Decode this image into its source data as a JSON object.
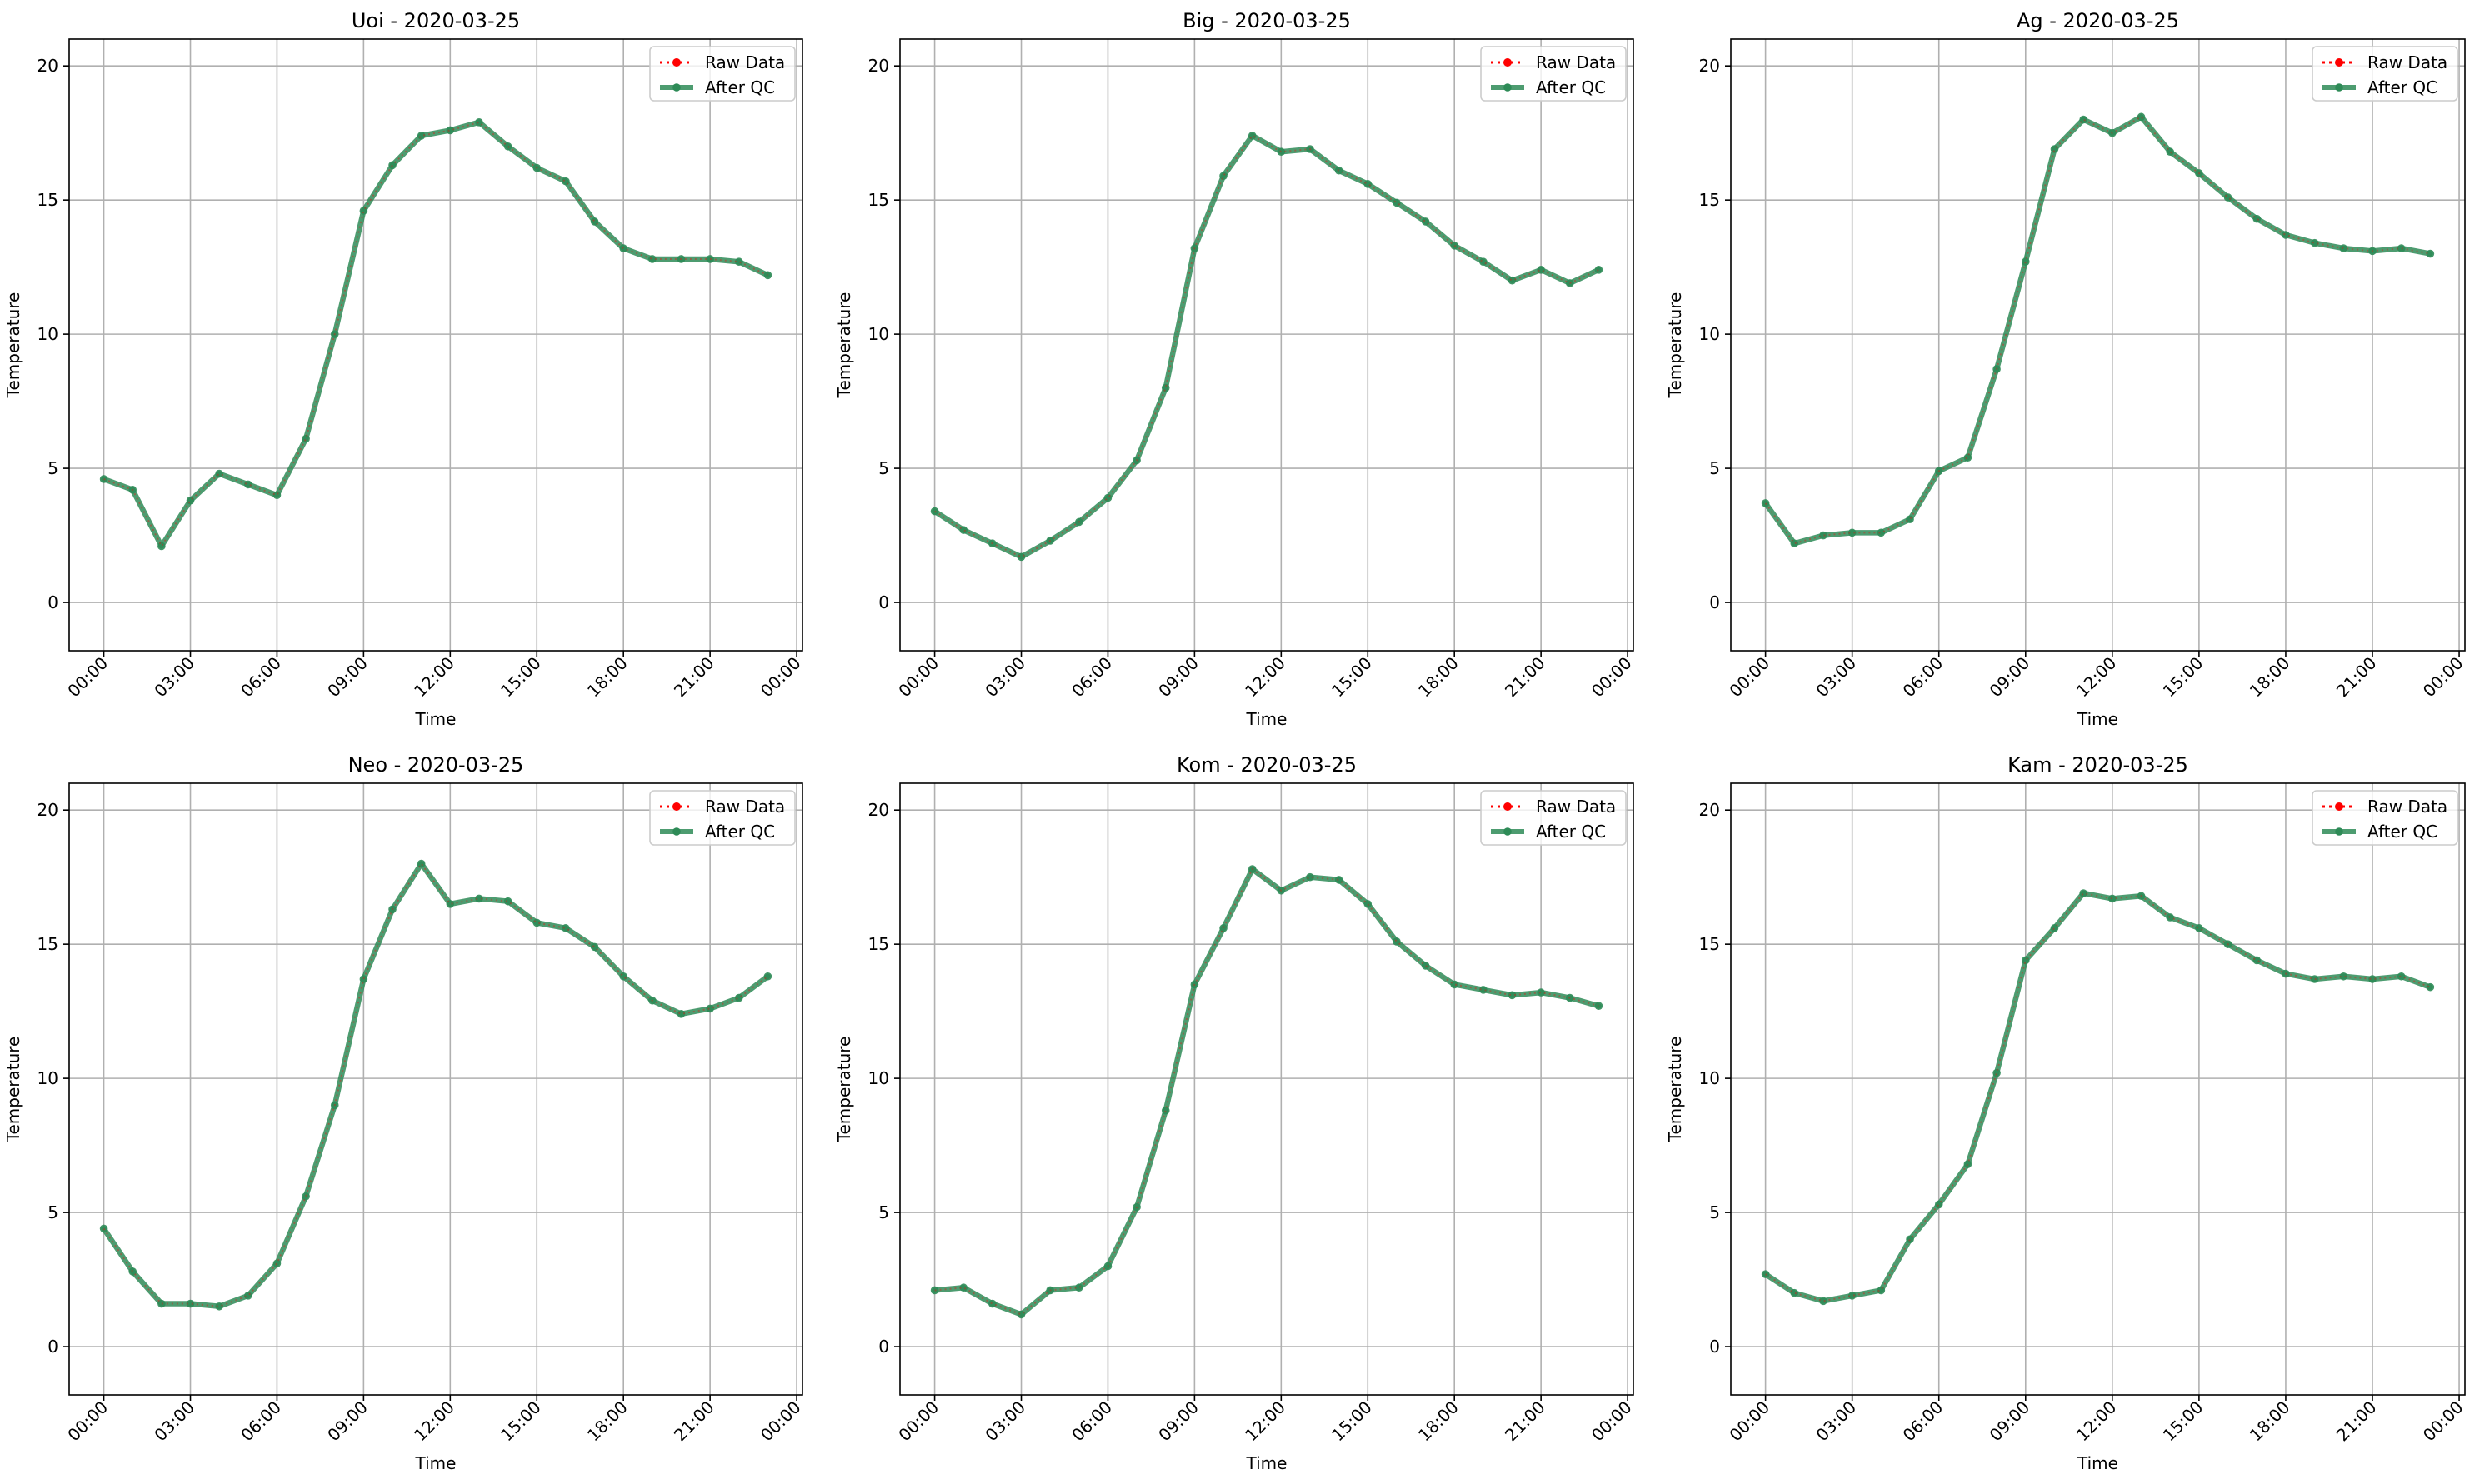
{
  "colors": {
    "raw": "#ff0000",
    "qc": "#2e8b57",
    "grid": "#b0b0b0",
    "axis": "#000000"
  },
  "legend": {
    "placement": "top-right",
    "raw_label": "Raw Data",
    "qc_label": "After QC"
  },
  "chart_data": [
    {
      "type": "line",
      "title": "Uoi - 2020-03-25",
      "xlabel": "Time",
      "ylabel": "Temperature",
      "x_hours": [
        0,
        1,
        2,
        3,
        4,
        5,
        6,
        7,
        8,
        9,
        10,
        11,
        12,
        13,
        14,
        15,
        16,
        17,
        18,
        19,
        20,
        21,
        22,
        23
      ],
      "xticks": [
        "00:00",
        "03:00",
        "06:00",
        "09:00",
        "12:00",
        "15:00",
        "18:00",
        "21:00",
        "00:00"
      ],
      "yticks": [
        "0",
        "5",
        "10",
        "15",
        "20"
      ],
      "ylim": [
        -1.8,
        21.0
      ],
      "grid": true,
      "series": [
        {
          "name": "Raw Data",
          "values": [
            4.6,
            4.2,
            2.1,
            3.8,
            4.8,
            4.4,
            4.0,
            6.1,
            10.0,
            14.6,
            16.3,
            17.4,
            17.6,
            17.9,
            17.0,
            16.2,
            15.7,
            14.2,
            13.2,
            12.8,
            12.8,
            12.8,
            12.7,
            12.2
          ]
        },
        {
          "name": "After QC",
          "values": [
            4.6,
            4.2,
            2.1,
            3.8,
            4.8,
            4.4,
            4.0,
            6.1,
            10.0,
            14.6,
            16.3,
            17.4,
            17.6,
            17.9,
            17.0,
            16.2,
            15.7,
            14.2,
            13.2,
            12.8,
            12.8,
            12.8,
            12.7,
            12.2
          ]
        }
      ]
    },
    {
      "type": "line",
      "title": "Big - 2020-03-25",
      "xlabel": "Time",
      "ylabel": "Temperature",
      "x_hours": [
        0,
        1,
        2,
        3,
        4,
        5,
        6,
        7,
        8,
        9,
        10,
        11,
        12,
        13,
        14,
        15,
        16,
        17,
        18,
        19,
        20,
        21,
        22,
        23
      ],
      "xticks": [
        "00:00",
        "03:00",
        "06:00",
        "09:00",
        "12:00",
        "15:00",
        "18:00",
        "21:00",
        "00:00"
      ],
      "yticks": [
        "0",
        "5",
        "10",
        "15",
        "20"
      ],
      "ylim": [
        -1.8,
        21.0
      ],
      "grid": true,
      "series": [
        {
          "name": "Raw Data",
          "values": [
            3.4,
            2.7,
            2.2,
            1.7,
            2.3,
            3.0,
            3.9,
            5.3,
            8.0,
            13.2,
            15.9,
            17.4,
            16.8,
            16.9,
            16.1,
            15.6,
            14.9,
            14.2,
            13.3,
            12.7,
            12.0,
            12.4,
            11.9,
            12.4
          ]
        },
        {
          "name": "After QC",
          "values": [
            3.4,
            2.7,
            2.2,
            1.7,
            2.3,
            3.0,
            3.9,
            5.3,
            8.0,
            13.2,
            15.9,
            17.4,
            16.8,
            16.9,
            16.1,
            15.6,
            14.9,
            14.2,
            13.3,
            12.7,
            12.0,
            12.4,
            11.9,
            12.4
          ]
        }
      ]
    },
    {
      "type": "line",
      "title": "Ag - 2020-03-25",
      "xlabel": "Time",
      "ylabel": "Temperature",
      "x_hours": [
        0,
        1,
        2,
        3,
        4,
        5,
        6,
        7,
        8,
        9,
        10,
        11,
        12,
        13,
        14,
        15,
        16,
        17,
        18,
        19,
        20,
        21,
        22,
        23
      ],
      "xticks": [
        "00:00",
        "03:00",
        "06:00",
        "09:00",
        "12:00",
        "15:00",
        "18:00",
        "21:00",
        "00:00"
      ],
      "yticks": [
        "0",
        "5",
        "10",
        "15",
        "20"
      ],
      "ylim": [
        -1.8,
        21.0
      ],
      "grid": true,
      "series": [
        {
          "name": "Raw Data",
          "values": [
            3.7,
            2.2,
            2.5,
            2.6,
            2.6,
            3.1,
            4.9,
            5.4,
            8.7,
            12.7,
            16.9,
            18.0,
            17.5,
            18.1,
            16.8,
            16.0,
            15.1,
            14.3,
            13.7,
            13.4,
            13.2,
            13.1,
            13.2,
            13.0
          ]
        },
        {
          "name": "After QC",
          "values": [
            3.7,
            2.2,
            2.5,
            2.6,
            2.6,
            3.1,
            4.9,
            5.4,
            8.7,
            12.7,
            16.9,
            18.0,
            17.5,
            18.1,
            16.8,
            16.0,
            15.1,
            14.3,
            13.7,
            13.4,
            13.2,
            13.1,
            13.2,
            13.0
          ]
        }
      ]
    },
    {
      "type": "line",
      "title": "Neo - 2020-03-25",
      "xlabel": "Time",
      "ylabel": "Temperature",
      "x_hours": [
        0,
        1,
        2,
        3,
        4,
        5,
        6,
        7,
        8,
        9,
        10,
        11,
        12,
        13,
        14,
        15,
        16,
        17,
        18,
        19,
        20,
        21,
        22,
        23
      ],
      "xticks": [
        "00:00",
        "03:00",
        "06:00",
        "09:00",
        "12:00",
        "15:00",
        "18:00",
        "21:00",
        "00:00"
      ],
      "yticks": [
        "0",
        "5",
        "10",
        "15",
        "20"
      ],
      "ylim": [
        -1.8,
        21.0
      ],
      "grid": true,
      "series": [
        {
          "name": "Raw Data",
          "values": [
            4.4,
            2.8,
            1.6,
            1.6,
            1.5,
            1.9,
            3.1,
            5.6,
            9.0,
            13.7,
            16.3,
            18.0,
            16.5,
            16.7,
            16.6,
            15.8,
            15.6,
            14.9,
            13.8,
            12.9,
            12.4,
            12.6,
            13.0,
            13.8
          ]
        },
        {
          "name": "After QC",
          "values": [
            4.4,
            2.8,
            1.6,
            1.6,
            1.5,
            1.9,
            3.1,
            5.6,
            9.0,
            13.7,
            16.3,
            18.0,
            16.5,
            16.7,
            16.6,
            15.8,
            15.6,
            14.9,
            13.8,
            12.9,
            12.4,
            12.6,
            13.0,
            13.8
          ]
        }
      ]
    },
    {
      "type": "line",
      "title": "Kom - 2020-03-25",
      "xlabel": "Time",
      "ylabel": "Temperature",
      "x_hours": [
        0,
        1,
        2,
        3,
        4,
        5,
        6,
        7,
        8,
        9,
        10,
        11,
        12,
        13,
        14,
        15,
        16,
        17,
        18,
        19,
        20,
        21,
        22,
        23
      ],
      "xticks": [
        "00:00",
        "03:00",
        "06:00",
        "09:00",
        "12:00",
        "15:00",
        "18:00",
        "21:00",
        "00:00"
      ],
      "yticks": [
        "0",
        "5",
        "10",
        "15",
        "20"
      ],
      "ylim": [
        -1.8,
        21.0
      ],
      "grid": true,
      "series": [
        {
          "name": "Raw Data",
          "values": [
            2.1,
            2.2,
            1.6,
            1.2,
            2.1,
            2.2,
            3.0,
            5.2,
            8.8,
            13.5,
            15.6,
            17.8,
            17.0,
            17.5,
            17.4,
            16.5,
            15.1,
            14.2,
            13.5,
            13.3,
            13.1,
            13.2,
            13.0,
            12.7
          ]
        },
        {
          "name": "After QC",
          "values": [
            2.1,
            2.2,
            1.6,
            1.2,
            2.1,
            2.2,
            3.0,
            5.2,
            8.8,
            13.5,
            15.6,
            17.8,
            17.0,
            17.5,
            17.4,
            16.5,
            15.1,
            14.2,
            13.5,
            13.3,
            13.1,
            13.2,
            13.0,
            12.7
          ]
        }
      ]
    },
    {
      "type": "line",
      "title": "Kam - 2020-03-25",
      "xlabel": "Time",
      "ylabel": "Temperature",
      "x_hours": [
        0,
        1,
        2,
        3,
        4,
        5,
        6,
        7,
        8,
        9,
        10,
        11,
        12,
        13,
        14,
        15,
        16,
        17,
        18,
        19,
        20,
        21,
        22,
        23
      ],
      "xticks": [
        "00:00",
        "03:00",
        "06:00",
        "09:00",
        "12:00",
        "15:00",
        "18:00",
        "21:00",
        "00:00"
      ],
      "yticks": [
        "0",
        "5",
        "10",
        "15",
        "20"
      ],
      "ylim": [
        -1.8,
        21.0
      ],
      "grid": true,
      "series": [
        {
          "name": "Raw Data",
          "values": [
            2.7,
            2.0,
            1.7,
            1.9,
            2.1,
            4.0,
            5.3,
            6.8,
            10.2,
            14.4,
            15.6,
            16.9,
            16.7,
            16.8,
            16.0,
            15.6,
            15.0,
            14.4,
            13.9,
            13.7,
            13.8,
            13.7,
            13.8,
            13.4
          ]
        },
        {
          "name": "After QC",
          "values": [
            2.7,
            2.0,
            1.7,
            1.9,
            2.1,
            4.0,
            5.3,
            6.8,
            10.2,
            14.4,
            15.6,
            16.9,
            16.7,
            16.8,
            16.0,
            15.6,
            15.0,
            14.4,
            13.9,
            13.7,
            13.8,
            13.7,
            13.8,
            13.4
          ]
        }
      ]
    }
  ]
}
